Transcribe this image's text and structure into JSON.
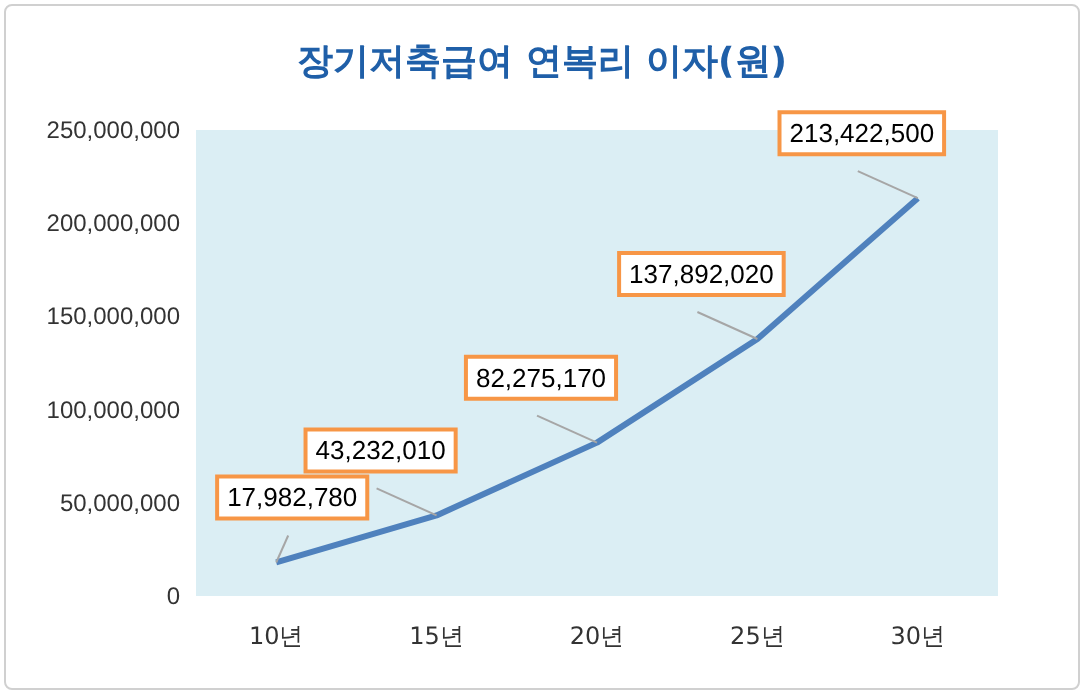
{
  "chart_data": {
    "type": "line",
    "title": "장기저축급여 연복리 이자(원)",
    "categories": [
      "10년",
      "15년",
      "20년",
      "25년",
      "30년"
    ],
    "series": [
      {
        "color": "#4f81bd",
        "values": [
          17982780,
          43232010,
          82275170,
          137892020,
          213422500
        ],
        "value_labels": [
          "17,982,780",
          "43,232,010",
          "82,275,170",
          "137,892,020",
          "213,422,500"
        ]
      }
    ],
    "ylim": [
      0,
      250000000
    ],
    "yticks": [
      0,
      {
        "value": 50000000,
        "label": "50,000,000"
      },
      {
        "value": 100000000,
        "label": "100,000,000"
      },
      {
        "value": 150000000,
        "label": "150,000,000"
      },
      {
        "value": 200000000,
        "label": "200,000,000"
      },
      {
        "value": 250000000,
        "label": "250,000,000"
      }
    ],
    "grid": false,
    "marker": "none",
    "line_style": "solid"
  }
}
